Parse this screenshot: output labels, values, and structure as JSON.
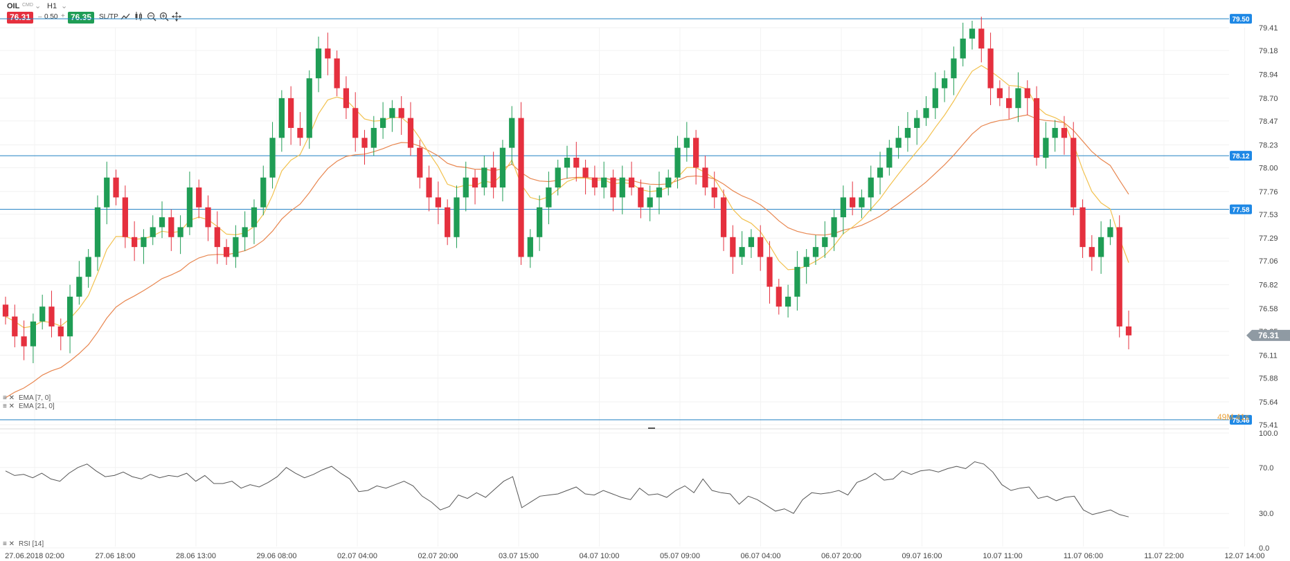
{
  "toolbar": {
    "symbol": "OIL",
    "symbol_sub": "CMD",
    "timeframe": "H1",
    "sell_price": "76.31",
    "volume_minus": "–",
    "volume": "0.50",
    "volume_plus": "+",
    "buy_price": "76.35",
    "sltp": "SL/TP",
    "icons": [
      "line-chart-icon",
      "candles-icon",
      "zoom-out-icon",
      "zoom-in-icon",
      "crosshair-icon"
    ]
  },
  "colors": {
    "up": "#1f9d55",
    "down": "#e5303e",
    "ema7": "#f2c14e",
    "ema21": "#e8864f",
    "hline": "#1e7fc2",
    "tag": "#1e88e5",
    "current_tag": "#8f9aa3",
    "rsi": "#555555",
    "timer": "#e8a33f"
  },
  "indicators": {
    "ema7_label": "EMA [7, 0]",
    "ema21_label": "EMA [21, 0]",
    "rsi_label": "RSI [14]",
    "timer": "49M 41s"
  },
  "chart_data": {
    "type": "candlestick",
    "symbol": "OIL",
    "timeframe": "H1",
    "y_ticks": [
      "79.41",
      "79.18",
      "78.94",
      "78.70",
      "78.47",
      "78.23",
      "78.00",
      "77.76",
      "77.53",
      "77.29",
      "77.06",
      "76.82",
      "76.58",
      "76.35",
      "76.11",
      "75.88",
      "75.64",
      "75.41"
    ],
    "ylim": [
      75.41,
      79.41
    ],
    "x_ticks": [
      "27.06.2018 02:00",
      "27.06 18:00",
      "28.06 13:00",
      "29.06 08:00",
      "02.07 04:00",
      "02.07 20:00",
      "03.07 15:00",
      "04.07 10:00",
      "05.07 09:00",
      "06.07 04:00",
      "06.07 20:00",
      "09.07 16:00",
      "10.07 11:00",
      "11.07 06:00",
      "11.07 22:00",
      "12.07 14:00"
    ],
    "horizontal_lines": [
      79.5,
      78.12,
      77.58,
      75.46
    ],
    "current_price": 76.31,
    "ohlc_anchor_closes": [
      76.5,
      76.3,
      76.2,
      76.45,
      76.6,
      76.4,
      76.3,
      76.7,
      76.9,
      77.1,
      77.6,
      77.9,
      77.7,
      77.3,
      77.2,
      77.3,
      77.4,
      77.5,
      77.3,
      77.4,
      77.8,
      77.6,
      77.4,
      77.2,
      77.1,
      77.3,
      77.4,
      77.6,
      77.9,
      78.3,
      78.7,
      78.4,
      78.3,
      78.9,
      79.2,
      79.1,
      78.8,
      78.6,
      78.3,
      78.2,
      78.4,
      78.5,
      78.6,
      78.5,
      78.2,
      77.9,
      77.7,
      77.6,
      77.3,
      77.7,
      77.9,
      77.8,
      78.0,
      77.8,
      78.2,
      78.5,
      77.1,
      77.3,
      77.6,
      77.8,
      78.0,
      78.1,
      78.0,
      77.9,
      77.8,
      77.9,
      77.7,
      77.9,
      77.8,
      77.6,
      77.7,
      77.8,
      77.9,
      78.2,
      78.3,
      78.0,
      77.8,
      77.7,
      77.3,
      77.1,
      77.2,
      77.3,
      77.1,
      76.8,
      76.6,
      76.7,
      77.0,
      77.1,
      77.2,
      77.3,
      77.5,
      77.7,
      77.6,
      77.7,
      77.9,
      78.0,
      78.2,
      78.3,
      78.4,
      78.5,
      78.6,
      78.8,
      78.9,
      79.1,
      79.3,
      79.4,
      79.2,
      78.8,
      78.7,
      78.6,
      78.8,
      78.7,
      78.1,
      78.3,
      78.4,
      78.3,
      77.6,
      77.2,
      77.1,
      77.3,
      77.4,
      76.4,
      76.31
    ],
    "rsi": {
      "name": "RSI [14]",
      "ylim": [
        0,
        100
      ],
      "y_ticks": [
        "100.0",
        "70.0",
        "30.0",
        "0.0"
      ],
      "values": [
        67,
        63,
        64,
        61,
        65,
        60,
        58,
        65,
        70,
        73,
        67,
        62,
        63,
        66,
        62,
        60,
        64,
        61,
        63,
        62,
        65,
        58,
        63,
        56,
        56,
        58,
        52,
        55,
        53,
        57,
        62,
        70,
        65,
        61,
        64,
        68,
        71,
        65,
        60,
        49,
        50,
        54,
        52,
        55,
        58,
        54,
        45,
        40,
        33,
        36,
        46,
        43,
        48,
        44,
        51,
        58,
        62,
        35,
        40,
        45,
        46,
        47,
        50,
        53,
        47,
        46,
        50,
        47,
        44,
        42,
        52,
        46,
        47,
        44,
        50,
        54,
        48,
        60,
        50,
        48,
        47,
        38,
        45,
        42,
        37,
        32,
        34,
        30,
        42,
        48,
        47,
        48,
        50,
        46,
        57,
        60,
        65,
        59,
        60,
        67,
        64,
        67,
        68,
        66,
        69,
        71,
        69,
        75,
        73,
        66,
        55,
        50,
        52,
        53,
        43,
        45,
        41,
        44,
        45,
        33,
        29,
        31,
        33,
        29,
        27
      ]
    }
  }
}
